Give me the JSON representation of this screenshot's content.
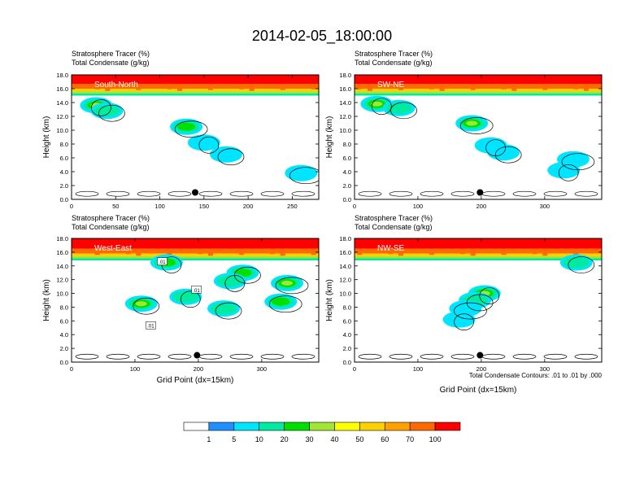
{
  "title": "2014-02-05_18:00:00",
  "panel_subtitles": [
    "Stratosphere Tracer   (%)",
    "Total Condensate   (g/kg)"
  ],
  "contour_note": "Total Condensate Contours: .01 to .01 by .000",
  "colorbar": {
    "labels": [
      "1",
      "5",
      "10",
      "20",
      "30",
      "40",
      "50",
      "60",
      "70",
      "100"
    ],
    "colors": [
      "#ffffff",
      "#1e90ff",
      "#00e5ff",
      "#00eaa0",
      "#00e000",
      "#a0e632",
      "#ffff00",
      "#ffd000",
      "#ffa000",
      "#ff6a00",
      "#ff0000"
    ]
  },
  "chart_data": [
    {
      "type": "heatmap",
      "panel_label": "South-North",
      "xlabel": "",
      "ylabel": "Height (km)",
      "xlim": [
        0,
        280
      ],
      "ylim": [
        0,
        18
      ],
      "xticks": [
        0,
        50,
        100,
        150,
        200,
        250
      ],
      "yticks": [
        "0.0",
        "2.0",
        "4.0",
        "6.0",
        "8.0",
        "10.0",
        "12.0",
        "14.0",
        "16.0",
        "18.0"
      ],
      "tropopause_km": 15.8,
      "marker": {
        "x": 140,
        "y": 1.0
      },
      "blobs": [
        {
          "x": 28,
          "y": 13.6,
          "value": 30
        },
        {
          "x": 40,
          "y": 12.8,
          "value": 10
        },
        {
          "x": 130,
          "y": 10.5,
          "value": 20
        },
        {
          "x": 150,
          "y": 8.2,
          "value": 5
        },
        {
          "x": 175,
          "y": 6.5,
          "value": 5
        },
        {
          "x": 260,
          "y": 3.8,
          "value": 5
        }
      ],
      "labels": []
    },
    {
      "type": "heatmap",
      "panel_label": "SW-NE",
      "xlabel": "",
      "ylabel": "Height (km)",
      "xlim": [
        0,
        390
      ],
      "ylim": [
        0,
        18
      ],
      "xticks": [
        0,
        100,
        200,
        300
      ],
      "yticks": [
        "0.0",
        "2.0",
        "4.0",
        "6.0",
        "8.0",
        "10.0",
        "12.0",
        "14.0",
        "16.0",
        "18.0"
      ],
      "tropopause_km": 15.8,
      "marker": {
        "x": 198,
        "y": 1.0
      },
      "blobs": [
        {
          "x": 35,
          "y": 13.8,
          "value": 30
        },
        {
          "x": 70,
          "y": 13.2,
          "value": 10
        },
        {
          "x": 185,
          "y": 11.0,
          "value": 30
        },
        {
          "x": 215,
          "y": 7.8,
          "value": 5
        },
        {
          "x": 235,
          "y": 6.8,
          "value": 5
        },
        {
          "x": 345,
          "y": 5.8,
          "value": 5
        },
        {
          "x": 330,
          "y": 4.2,
          "value": 5
        }
      ],
      "labels": []
    },
    {
      "type": "heatmap",
      "panel_label": "West-East",
      "xlabel": "Grid Point (dx=15km)",
      "ylabel": "Height (km)",
      "xlim": [
        0,
        390
      ],
      "ylim": [
        0,
        18
      ],
      "xticks": [
        0,
        100,
        200,
        300
      ],
      "yticks": [
        "0.0",
        "2.0",
        "4.0",
        "6.0",
        "8.0",
        "10.0",
        "12.0",
        "14.0",
        "16.0",
        "18.0"
      ],
      "tropopause_km": 15.6,
      "marker": {
        "x": 198,
        "y": 1.0
      },
      "blobs": [
        {
          "x": 150,
          "y": 14.5,
          "value": 20
        },
        {
          "x": 270,
          "y": 13.0,
          "value": 20
        },
        {
          "x": 340,
          "y": 11.5,
          "value": 30
        },
        {
          "x": 250,
          "y": 11.8,
          "value": 10
        },
        {
          "x": 240,
          "y": 7.8,
          "value": 10
        },
        {
          "x": 330,
          "y": 8.8,
          "value": 20
        },
        {
          "x": 180,
          "y": 9.5,
          "value": 10
        },
        {
          "x": 110,
          "y": 8.5,
          "value": 30
        }
      ],
      "labels": [
        {
          "text": ".01",
          "x": 143,
          "y": 14.6
        },
        {
          "text": ".01",
          "x": 197,
          "y": 10.5
        },
        {
          "text": ".01",
          "x": 125,
          "y": 5.3
        }
      ]
    },
    {
      "type": "heatmap",
      "panel_label": "NW-SE",
      "xlabel": "Grid Point (dx=15km)",
      "ylabel": "Height (km)",
      "xlim": [
        0,
        390
      ],
      "ylim": [
        0,
        18
      ],
      "xticks": [
        0,
        100,
        200,
        300
      ],
      "yticks": [
        "0.0",
        "2.0",
        "4.0",
        "6.0",
        "8.0",
        "10.0",
        "12.0",
        "14.0",
        "16.0",
        "18.0"
      ],
      "tropopause_km": 15.6,
      "marker": {
        "x": 198,
        "y": 1.0
      },
      "blobs": [
        {
          "x": 205,
          "y": 10.0,
          "value": 30
        },
        {
          "x": 190,
          "y": 9.0,
          "value": 10
        },
        {
          "x": 175,
          "y": 7.8,
          "value": 5
        },
        {
          "x": 165,
          "y": 6.2,
          "value": 5
        },
        {
          "x": 350,
          "y": 14.5,
          "value": 10
        }
      ],
      "labels": []
    }
  ]
}
